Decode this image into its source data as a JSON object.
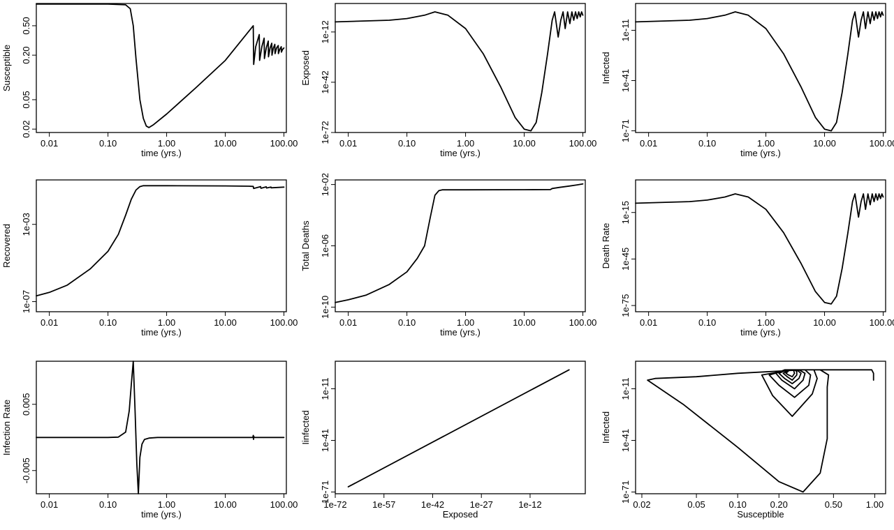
{
  "chart_data": [
    {
      "type": "line",
      "xlabel": "time (yrs.)",
      "ylabel": "Susceptible",
      "xscale": "log",
      "yscale": "log",
      "xlim": [
        0.006,
        110
      ],
      "ylim": [
        0.018,
        1.0
      ],
      "xticks": [
        0.01,
        0.1,
        1,
        10,
        100
      ],
      "xticklabels": [
        "0.01",
        "0.10",
        "1.00",
        "10.00",
        "100.00"
      ],
      "yticks": [
        0.02,
        0.05,
        0.2,
        0.5
      ],
      "yticklabels": [
        "0.02",
        "0.05",
        "0.20",
        "0.50"
      ],
      "series": [
        {
          "x": [
            0.006,
            0.1,
            0.2,
            0.24,
            0.27,
            0.3,
            0.35,
            0.4,
            0.45,
            0.5,
            0.6,
            1,
            3,
            10,
            30,
            30.5,
            33,
            38,
            38.5,
            42,
            46,
            46.5,
            50,
            54,
            54.5,
            58,
            62,
            62.5,
            66,
            70,
            70.5,
            75,
            80,
            80.5,
            85,
            90,
            90.5,
            95,
            100
          ],
          "y": [
            0.98,
            0.98,
            0.96,
            0.85,
            0.5,
            0.18,
            0.05,
            0.028,
            0.022,
            0.021,
            0.023,
            0.032,
            0.07,
            0.17,
            0.5,
            0.15,
            0.26,
            0.38,
            0.17,
            0.26,
            0.34,
            0.18,
            0.25,
            0.31,
            0.19,
            0.25,
            0.29,
            0.2,
            0.25,
            0.28,
            0.21,
            0.25,
            0.27,
            0.21,
            0.24,
            0.26,
            0.22,
            0.24,
            0.25
          ]
        }
      ]
    },
    {
      "type": "line",
      "xlabel": "time (yrs.)",
      "ylabel": "Exposed",
      "xscale": "log",
      "yscale": "log",
      "xlim": [
        0.006,
        110
      ],
      "ylim": [
        1e-72,
        100000.0
      ],
      "xticks": [
        0.01,
        0.1,
        1,
        10,
        100
      ],
      "xticklabels": [
        "0.01",
        "0.10",
        "1.00",
        "10.00",
        "100.00"
      ],
      "yticks": [
        1e-72,
        1e-42,
        1e-12
      ],
      "yticklabels": [
        "1e-72",
        "1e-42",
        "1e-12"
      ],
      "series": [
        {
          "x": [
            0.006,
            0.05,
            0.1,
            0.2,
            0.3,
            0.5,
            1,
            2,
            4,
            7,
            10,
            13,
            16,
            20,
            25,
            30,
            33,
            38,
            42,
            46,
            50,
            55,
            60,
            65,
            70,
            75,
            80,
            85,
            90,
            95,
            100
          ],
          "y": [
            1e-06,
            1e-05,
            0.0001,
            0.01,
            1,
            0.01,
            1e-10,
            1e-25,
            1e-45,
            1e-63,
            1e-70,
            1e-71,
            1e-66,
            1e-48,
            1e-25,
            1e-05,
            1,
            1e-15,
            1e-05,
            1,
            1e-10,
            1,
            1e-07,
            1,
            1e-05,
            1,
            0.0001,
            1,
            0.001,
            1,
            0.01
          ]
        }
      ]
    },
    {
      "type": "line",
      "xlabel": "time (yrs.)",
      "ylabel": "Infected",
      "xscale": "log",
      "yscale": "log",
      "xlim": [
        0.006,
        110
      ],
      "ylim": [
        1e-72,
        100000.0
      ],
      "xticks": [
        0.01,
        0.1,
        1,
        10,
        100
      ],
      "xticklabels": [
        "0.01",
        "0.10",
        "1.00",
        "10.00",
        "100.00"
      ],
      "yticks": [
        1e-71,
        1e-41,
        1e-11
      ],
      "yticklabels": [
        "1e-71",
        "1e-41",
        "1e-11"
      ],
      "series": [
        {
          "x": [
            0.006,
            0.05,
            0.1,
            0.2,
            0.3,
            0.5,
            1,
            2,
            4,
            7,
            10,
            13,
            16,
            20,
            25,
            30,
            33,
            38,
            42,
            46,
            50,
            55,
            60,
            65,
            70,
            75,
            80,
            85,
            90,
            95,
            100
          ],
          "y": [
            1e-06,
            1e-05,
            0.0001,
            0.01,
            1,
            0.01,
            1e-10,
            1e-25,
            1e-45,
            1e-63,
            1e-70,
            1e-71,
            1e-66,
            1e-48,
            1e-25,
            1e-05,
            1,
            1e-15,
            1e-05,
            1,
            1e-10,
            1,
            1e-07,
            1,
            1e-05,
            1,
            0.0001,
            1,
            0.001,
            1,
            0.01
          ]
        }
      ]
    },
    {
      "type": "line",
      "xlabel": "time (yrs.)",
      "ylabel": "Recovered",
      "xscale": "log",
      "yscale": "log",
      "xlim": [
        0.006,
        110
      ],
      "ylim": [
        3e-08,
        0.2
      ],
      "xticks": [
        0.01,
        0.1,
        1,
        10,
        100
      ],
      "xticklabels": [
        "0.01",
        "0.10",
        "1.00",
        "10.00",
        "100.00"
      ],
      "yticks": [
        1e-07,
        0.001
      ],
      "yticklabels": [
        "1e-07",
        "1e-03"
      ],
      "series": [
        {
          "x": [
            0.006,
            0.01,
            0.02,
            0.05,
            0.1,
            0.15,
            0.2,
            0.25,
            0.3,
            0.35,
            0.4,
            1,
            10,
            25,
            30,
            30.5,
            40,
            40.5,
            50,
            50.5,
            60,
            60.5,
            100
          ],
          "y": [
            2e-07,
            3e-07,
            7e-07,
            5e-06,
            4e-05,
            0.0003,
            0.003,
            0.02,
            0.06,
            0.09,
            0.1,
            0.1,
            0.098,
            0.095,
            0.092,
            0.072,
            0.09,
            0.074,
            0.088,
            0.076,
            0.086,
            0.078,
            0.085
          ]
        }
      ]
    },
    {
      "type": "line",
      "xlabel": "time (yrs.)",
      "ylabel": "Total Deaths",
      "xscale": "log",
      "yscale": "log",
      "xlim": [
        0.006,
        110
      ],
      "ylim": [
        5e-11,
        0.02
      ],
      "xticks": [
        0.01,
        0.1,
        1,
        10,
        100
      ],
      "xticklabels": [
        "0.01",
        "0.10",
        "1.00",
        "10.00",
        "100.00"
      ],
      "yticks": [
        1e-10,
        1e-06,
        0.01
      ],
      "yticklabels": [
        "1e-10",
        "1e-06",
        "1e-02"
      ],
      "series": [
        {
          "x": [
            0.006,
            0.01,
            0.02,
            0.05,
            0.1,
            0.15,
            0.2,
            0.25,
            0.3,
            0.35,
            0.4,
            1,
            10,
            28,
            30,
            40,
            60,
            80,
            100
          ],
          "y": [
            2e-10,
            3e-10,
            6e-10,
            3e-09,
            2e-08,
            1.5e-07,
            1e-06,
            7e-05,
            0.002,
            0.004,
            0.0045,
            0.0045,
            0.0046,
            0.0047,
            0.0055,
            0.0065,
            0.008,
            0.0095,
            0.011
          ]
        }
      ]
    },
    {
      "type": "line",
      "xlabel": "time (yrs.)",
      "ylabel": "Death Rate",
      "xscale": "log",
      "yscale": "log",
      "xlim": [
        0.006,
        110
      ],
      "ylim": [
        1e-79,
        1000000.0
      ],
      "xticks": [
        0.01,
        0.1,
        1,
        10,
        100
      ],
      "xticklabels": [
        "0.01",
        "0.10",
        "1.00",
        "10.00",
        "100.00"
      ],
      "yticks": [
        1e-75,
        1e-45,
        1e-15
      ],
      "yticklabels": [
        "1e-75",
        "1e-45",
        "1e-15"
      ],
      "series": [
        {
          "x": [
            0.006,
            0.05,
            0.1,
            0.2,
            0.3,
            0.5,
            1,
            2,
            4,
            7,
            10,
            13,
            16,
            20,
            25,
            30,
            33,
            38,
            42,
            46,
            50,
            55,
            60,
            65,
            70,
            75,
            80,
            85,
            90,
            95,
            100
          ],
          "y": [
            1e-09,
            1e-08,
            1e-07,
            1e-05,
            0.001,
            1e-05,
            1e-13,
            1e-28,
            1e-48,
            1e-66,
            1e-73,
            1e-74,
            1e-69,
            1e-51,
            1e-28,
            1e-08,
            0.001,
            1e-18,
            1e-08,
            0.001,
            1e-13,
            0.001,
            1e-10,
            0.001,
            1e-08,
            0.001,
            1e-07,
            0.001,
            1e-06,
            0.001,
            1e-05
          ]
        }
      ]
    },
    {
      "type": "line",
      "xlabel": "time (yrs.)",
      "ylabel": "Infection Rate",
      "xscale": "log",
      "yscale": "linear",
      "xlim": [
        0.006,
        110
      ],
      "ylim": [
        -0.0085,
        0.0115
      ],
      "xticks": [
        0.01,
        0.1,
        1,
        10,
        100
      ],
      "xticklabels": [
        "0.01",
        "0.10",
        "1.00",
        "10.00",
        "100.00"
      ],
      "yticks": [
        -0.005,
        0.005
      ],
      "yticklabels": [
        "-0.005",
        "0.005"
      ],
      "series": [
        {
          "x": [
            0.006,
            0.1,
            0.15,
            0.2,
            0.23,
            0.25,
            0.27,
            0.29,
            0.31,
            0.33,
            0.35,
            0.38,
            0.42,
            0.5,
            0.7,
            1,
            29.5,
            30,
            30.3,
            30.6,
            31,
            100
          ],
          "y": [
            0,
            0,
            5e-05,
            0.0008,
            0.004,
            0.008,
            0.0115,
            0.004,
            -0.004,
            -0.0085,
            -0.003,
            -0.001,
            -0.0003,
            -0.0001,
            0,
            0,
            0,
            0.0003,
            -0.0003,
            0.0002,
            0,
            0
          ]
        }
      ]
    },
    {
      "type": "line",
      "xlabel": "Exposed",
      "ylabel": "Iinfected",
      "xscale": "log",
      "yscale": "log",
      "xlim": [
        1e-72,
        100000.0
      ],
      "ylim": [
        1e-72,
        100000.0
      ],
      "xticks": [
        1e-72,
        1e-57,
        1e-42,
        1e-27,
        1e-12
      ],
      "xticklabels": [
        "1e-72",
        "1e-57",
        "1e-42",
        "1e-27",
        "1e-12"
      ],
      "yticks": [
        1e-71,
        1e-41,
        1e-11
      ],
      "yticklabels": [
        "1e-71",
        "1e-41",
        "1e-11"
      ],
      "series": [
        {
          "x": [
            1e-68,
            1
          ],
          "y": [
            1e-68,
            1
          ]
        }
      ]
    },
    {
      "type": "line",
      "xlabel": "Susceptible",
      "ylabel": "Infected",
      "xscale": "log",
      "yscale": "log",
      "xlim": [
        0.018,
        1.2
      ],
      "ylim": [
        1e-72,
        100000.0
      ],
      "xticks": [
        0.02,
        0.05,
        0.1,
        0.2,
        0.5,
        1
      ],
      "xticklabels": [
        "0.02",
        "0.05",
        "0.10",
        "0.20",
        "0.50",
        "1.00"
      ],
      "yticks": [
        1e-71,
        1e-41,
        1e-11
      ],
      "yticklabels": [
        "1e-71",
        "1e-41",
        "1e-11"
      ],
      "series": [
        {
          "x": [
            0.98,
            0.98,
            0.95,
            0.9,
            0.75,
            0.5,
            0.3,
            0.1,
            0.05,
            0.025,
            0.022,
            0.04,
            0.1,
            0.2,
            0.3,
            0.4,
            0.45,
            0.45,
            0.46,
            0.4,
            0.25,
            0.15,
            0.18,
            0.25,
            0.35,
            0.38,
            0.36,
            0.32,
            0.23,
            0.17,
            0.2,
            0.26,
            0.33,
            0.34,
            0.31,
            0.22,
            0.19,
            0.21,
            0.26,
            0.3,
            0.31,
            0.28,
            0.23,
            0.2,
            0.22,
            0.25,
            0.28,
            0.29,
            0.27,
            0.24,
            0.215,
            0.23,
            0.25,
            0.27,
            0.27,
            0.26,
            0.24,
            0.225,
            0.235,
            0.25,
            0.26,
            0.255,
            0.245
          ],
          "y": [
            1e-06,
            0.01,
            1,
            1,
            1,
            1,
            1,
            0.01,
            0.0001,
            1e-05,
            1e-06,
            1e-20,
            1e-45,
            1e-65,
            1e-71,
            1e-60,
            1e-40,
            1e-10,
            0.001,
            1,
            1,
            0.001,
            1e-15,
            1e-27,
            1e-14,
            1e-05,
            1,
            1,
            1,
            0.001,
            1e-09,
            1e-16,
            1e-09,
            0.001,
            1,
            1,
            0.01,
            1e-06,
            1e-11,
            1e-06,
            0.01,
            1,
            1,
            0.01,
            1e-05,
            1e-08,
            1e-05,
            0.01,
            1,
            1,
            0.01,
            0.0001,
            1e-06,
            0.001,
            0.1,
            1,
            1,
            0.01,
            0.001,
            0.0001,
            0.01,
            1,
            1
          ]
        }
      ]
    }
  ]
}
